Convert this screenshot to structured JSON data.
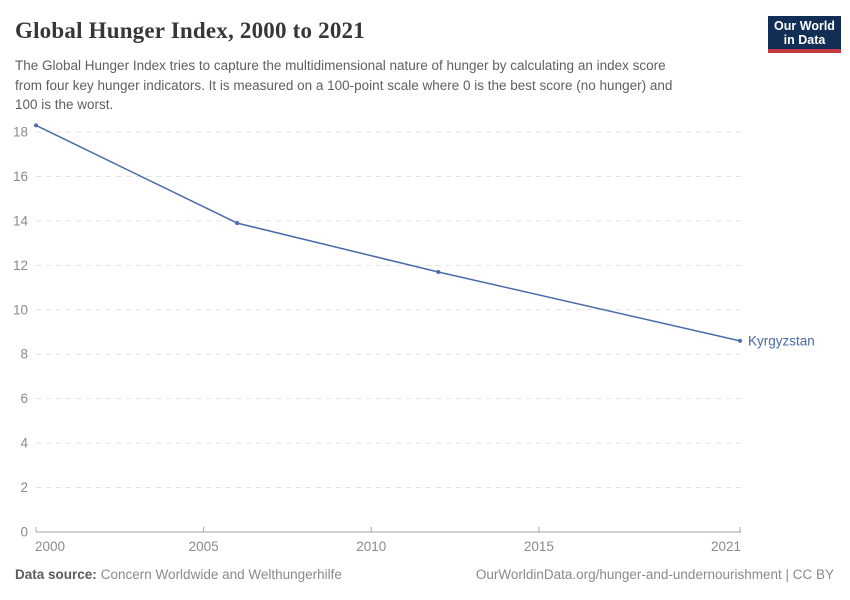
{
  "header": {
    "title": "Global Hunger Index, 2000 to 2021",
    "subtitle_lines": [
      "The Global Hunger Index tries to capture the multidimensional nature of hunger by calculating an index score",
      "from four key hunger indicators. It is measured on a 100-point scale where 0 is the best score (no hunger) and",
      "100 is the worst."
    ],
    "logo": {
      "line1": "Our World",
      "line2": "in Data"
    }
  },
  "chart_data": {
    "type": "line",
    "title": "Global Hunger Index, 2000 to 2021",
    "series": [
      {
        "name": "Kyrgyzstan",
        "x": [
          2000,
          2006,
          2012,
          2021
        ],
        "values": [
          18.3,
          13.9,
          11.7,
          8.6
        ],
        "color": "#4a6aa8"
      }
    ],
    "xlim": [
      2000,
      2021
    ],
    "ylim": [
      0,
      18
    ],
    "xticks": [
      2000,
      2005,
      2010,
      2015,
      2021
    ],
    "yticks": [
      0,
      2,
      4,
      6,
      8,
      10,
      12,
      14,
      16,
      18
    ],
    "xlabel": "",
    "ylabel": "",
    "grid": "horizontal-dashed",
    "legend_position": "end-of-line-label"
  },
  "footer": {
    "source_label": "Data source:",
    "source_value": "Concern Worldwide and Welthungerhilfe",
    "attribution": "OurWorldinData.org/hunger-and-undernourishment | CC BY"
  },
  "colors": {
    "line": "#4a6aa8",
    "logo_background": "#132e54",
    "logo_accent": "#c43b3f",
    "gridline": "#e2e2e2",
    "axis": "#a5a5a5",
    "tick_label": "#8b8b8b",
    "title": "#373737",
    "subtitle": "#5f5f5f",
    "footer_text": "#8a8a8a"
  }
}
